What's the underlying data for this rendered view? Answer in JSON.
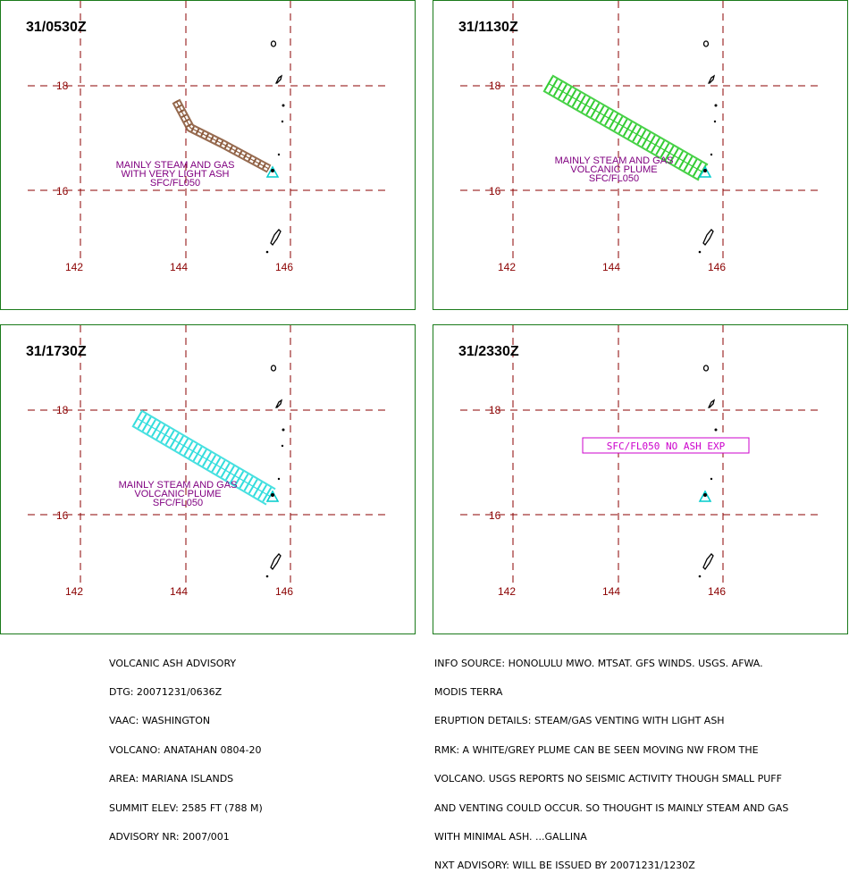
{
  "panels": [
    {
      "time_label": "31/0530Z",
      "lat_labels": [
        "18",
        "16"
      ],
      "lon_labels": [
        "142",
        "144",
        "146"
      ],
      "annotation": [
        "MAINLY STEAM AND GAS",
        "WITH VERY LIGHT ASH",
        "SFC/FL050"
      ],
      "boxed_text": "",
      "plume_color": "#8b5a3c"
    },
    {
      "time_label": "31/1130Z",
      "lat_labels": [
        "18",
        "16"
      ],
      "lon_labels": [
        "142",
        "144",
        "146"
      ],
      "annotation": [
        "MAINLY STEAM AND GAS",
        "VOLCANIC PLUME",
        "SFC/FL050"
      ],
      "boxed_text": "",
      "plume_color": "#33cc33"
    },
    {
      "time_label": "31/1730Z",
      "lat_labels": [
        "18",
        "16"
      ],
      "lon_labels": [
        "142",
        "144",
        "146"
      ],
      "annotation": [
        "MAINLY STEAM AND GAS",
        "VOLCANIC PLUME",
        "SFC/FL050"
      ],
      "boxed_text": "",
      "plume_color": "#33dddd"
    },
    {
      "time_label": "31/2330Z",
      "lat_labels": [
        "18",
        "16"
      ],
      "lon_labels": [
        "142",
        "144",
        "146"
      ],
      "annotation": [],
      "boxed_text": "SFC/FL050 NO ASH EXP",
      "plume_color": ""
    }
  ],
  "colors": {
    "border": "#1a7a1a",
    "grid": "#8b0000",
    "annotation": "#800080",
    "volcano": "#00cccc",
    "land": "#000000"
  },
  "advisory_left": [
    "VOLCANIC ASH ADVISORY",
    "DTG: 20071231/0636Z",
    "VAAC: WASHINGTON",
    "VOLCANO: ANATAHAN 0804-20",
    "AREA: MARIANA ISLANDS",
    "SUMMIT ELEV: 2585 FT (788 M)",
    "ADVISORY NR: 2007/001"
  ],
  "advisory_right": [
    "INFO SOURCE: HONOLULU MWO. MTSAT. GFS WINDS. USGS. AFWA.",
    "MODIS TERRA",
    "ERUPTION DETAILS: STEAM/GAS VENTING WITH LIGHT ASH",
    "RMK: A WHITE/GREY PLUME CAN BE SEEN MOVING NW FROM THE",
    "VOLCANO. USGS REPORTS NO SEISMIC ACTIVITY THOUGH SMALL PUFF",
    "AND VENTING COULD OCCUR. SO THOUGHT IS MAINLY STEAM AND GAS",
    "WITH MINIMAL ASH. ...GALLINA",
    "NXT ADVISORY: WILL BE ISSUED BY 20071231/1230Z"
  ]
}
